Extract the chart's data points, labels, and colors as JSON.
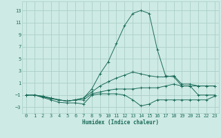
{
  "xlabel": "Humidex (Indice chaleur)",
  "xlim": [
    -0.5,
    23.5
  ],
  "ylim": [
    -4.0,
    14.5
  ],
  "yticks": [
    -3,
    -1,
    1,
    3,
    5,
    7,
    9,
    11,
    13
  ],
  "xticks": [
    0,
    1,
    2,
    3,
    4,
    5,
    6,
    7,
    8,
    9,
    10,
    11,
    12,
    13,
    14,
    15,
    16,
    17,
    18,
    19,
    20,
    21,
    22,
    23
  ],
  "bg_color": "#ceeae4",
  "grid_color": "#aacfc8",
  "line_color": "#1a6b5a",
  "series": [
    {
      "x": [
        0,
        1,
        2,
        3,
        4,
        5,
        6,
        7,
        8,
        9,
        10,
        11,
        12,
        13,
        14,
        15,
        16,
        17,
        18,
        19,
        20,
        21,
        22,
        23
      ],
      "y": [
        -1,
        -1,
        -1.4,
        -1.8,
        -2.2,
        -2.3,
        -2.3,
        -2.5,
        -1.0,
        -0.8,
        -0.8,
        -0.8,
        -1.0,
        -1.8,
        -2.8,
        -2.5,
        -1.8,
        -1.8,
        -1.8,
        -1.8,
        -1.8,
        -1.8,
        -1.8,
        -1.2
      ]
    },
    {
      "x": [
        0,
        1,
        2,
        3,
        4,
        5,
        6,
        7,
        8,
        9,
        10,
        11,
        12,
        13,
        14,
        15,
        16,
        17,
        18,
        19,
        20,
        21,
        22,
        23
      ],
      "y": [
        -1,
        -1,
        -1.3,
        -1.6,
        -1.8,
        -2.0,
        -1.8,
        -1.8,
        -0.8,
        -0.5,
        -0.2,
        0.0,
        0.0,
        0.0,
        0.2,
        0.2,
        0.2,
        0.5,
        0.8,
        0.5,
        0.5,
        0.5,
        0.5,
        0.5
      ]
    },
    {
      "x": [
        0,
        1,
        2,
        3,
        4,
        5,
        6,
        7,
        8,
        9,
        10,
        11,
        12,
        13,
        14,
        15,
        16,
        17,
        18,
        19,
        20,
        21,
        22,
        23
      ],
      "y": [
        -1,
        -1,
        -1.2,
        -1.5,
        -1.8,
        -2.0,
        -1.8,
        -1.5,
        -0.5,
        0.5,
        1.2,
        1.8,
        2.3,
        2.8,
        2.5,
        2.2,
        2.0,
        2.0,
        2.2,
        0.8,
        0.8,
        0.5,
        0.5,
        0.5
      ]
    },
    {
      "x": [
        0,
        1,
        2,
        3,
        4,
        5,
        6,
        7,
        8,
        9,
        10,
        11,
        12,
        13,
        14,
        15,
        16,
        17,
        18,
        19,
        20,
        21,
        22,
        23
      ],
      "y": [
        -1,
        -1,
        -1.2,
        -1.5,
        -1.8,
        -2.0,
        -1.8,
        -1.5,
        0.0,
        2.5,
        4.5,
        7.5,
        10.5,
        12.5,
        13.0,
        12.5,
        6.5,
        2.2,
        2.0,
        0.5,
        0.5,
        -1.0,
        -1.0,
        -1.0
      ]
    }
  ]
}
